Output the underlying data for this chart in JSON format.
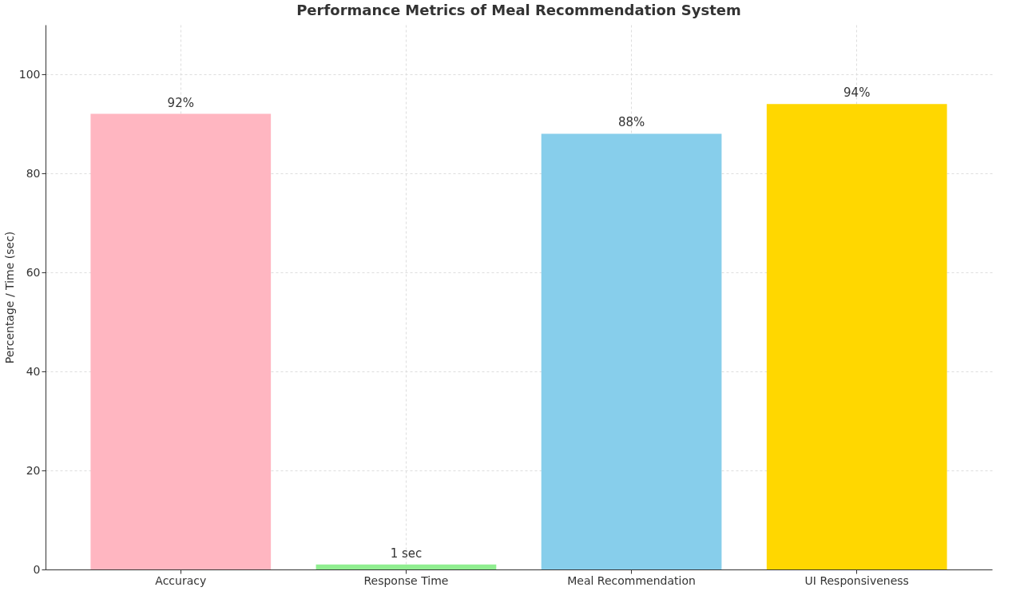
{
  "chart_data": {
    "type": "bar",
    "title": "Performance Metrics of Meal Recommendation System",
    "ylabel": "Percentage / Time (sec)",
    "categories": [
      "Accuracy",
      "Response Time",
      "Meal Recommendation",
      "UI Responsiveness"
    ],
    "values": [
      92,
      1,
      88,
      94
    ],
    "colors": [
      "#ffb6c1",
      "#90ee90",
      "#87ceeb",
      "#ffd700"
    ],
    "value_labels": [
      "92%",
      "1 sec",
      "88%",
      "94%"
    ],
    "ylim": [
      0,
      110
    ],
    "yticks": [
      0,
      20,
      40,
      60,
      80,
      100
    ],
    "grid": true
  }
}
